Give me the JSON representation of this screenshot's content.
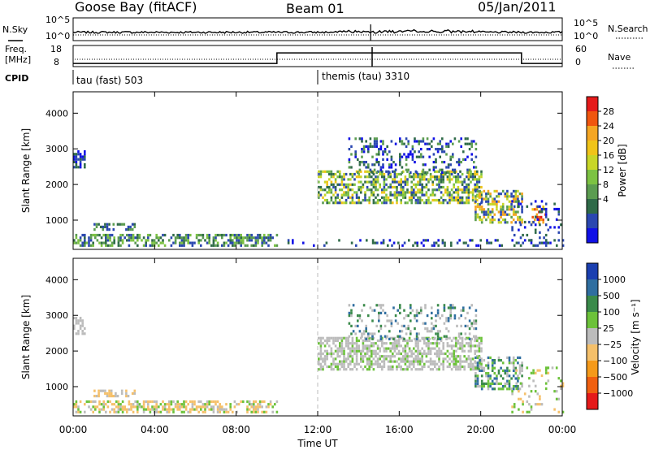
{
  "header": {
    "site": "Goose Bay (fitACF)",
    "beam": "Beam 01",
    "date": "05/Jan/2011"
  },
  "panels": {
    "nsky_label": "N.Sky",
    "nsky_ticks": [
      "10^5",
      "10^0"
    ],
    "nsearch_label": "N.Search",
    "nsearch_ticks": [
      "10^5",
      "10^0"
    ],
    "freq_label_1": "Freq.",
    "freq_label_2": "[MHz]",
    "freq_ticks": [
      "18",
      "8"
    ],
    "nave_label": "Nave",
    "nave_ticks": [
      "60",
      "0"
    ],
    "cpid_label": "CPID",
    "cpid_segments": [
      "tau (fast) 503",
      "themis (tau) 3310"
    ]
  },
  "chart_data": [
    {
      "type": "heatmap",
      "name": "power",
      "xlabel": "Time UT",
      "ylabel": "Slant Range [km]",
      "x_ticks": [
        "00:00",
        "04:00",
        "08:00",
        "12:00",
        "16:00",
        "20:00",
        "00:00"
      ],
      "y_ticks": [
        1000,
        2000,
        3000,
        4000
      ],
      "xlim": [
        0,
        24
      ],
      "ylim": [
        180,
        4600
      ],
      "colorbar": {
        "label": "Power [dB]",
        "ticks": [
          "28",
          "24",
          "20",
          "16",
          "12",
          "8",
          "4"
        ],
        "colors": [
          "#e51a1a",
          "#f0560f",
          "#f5a623",
          "#f0c419",
          "#c8d628",
          "#7cc242",
          "#5b9c50",
          "#2f6a48",
          "#2a47b0",
          "#1010e6"
        ]
      },
      "regions": [
        {
          "t0": 0.0,
          "t1": 10.0,
          "r0": 250,
          "r1": 550,
          "density": 0.55,
          "levels": [
            1,
            2,
            3,
            4
          ]
        },
        {
          "t0": 1.0,
          "t1": 3.0,
          "r0": 700,
          "r1": 900,
          "density": 0.5,
          "levels": [
            1,
            2,
            3
          ]
        },
        {
          "t0": 0.0,
          "t1": 0.6,
          "r0": 2450,
          "r1": 2900,
          "density": 0.6,
          "levels": [
            0,
            1,
            2
          ]
        },
        {
          "t0": 12.0,
          "t1": 20.0,
          "r0": 1450,
          "r1": 2350,
          "density": 0.6,
          "levels": [
            1,
            2,
            3,
            4,
            5,
            6
          ]
        },
        {
          "t0": 13.5,
          "t1": 19.8,
          "r0": 2300,
          "r1": 3300,
          "density": 0.25,
          "levels": [
            0,
            1,
            2,
            3
          ]
        },
        {
          "t0": 19.7,
          "t1": 22.0,
          "r0": 900,
          "r1": 1800,
          "density": 0.55,
          "levels": [
            1,
            3,
            5,
            7
          ]
        },
        {
          "t0": 22.5,
          "t1": 23.2,
          "r0": 900,
          "r1": 1400,
          "density": 0.55,
          "levels": [
            6,
            7,
            8,
            9
          ]
        },
        {
          "t0": 21.5,
          "t1": 24.0,
          "r0": 250,
          "r1": 1500,
          "density": 0.15,
          "levels": [
            0,
            1,
            2
          ]
        },
        {
          "t0": 10.0,
          "t1": 24.0,
          "r0": 250,
          "r1": 450,
          "density": 0.2,
          "levels": [
            0,
            1,
            2
          ]
        }
      ]
    },
    {
      "type": "heatmap",
      "name": "velocity",
      "xlabel": "Time UT",
      "ylabel": "Slant Range [km]",
      "x_ticks": [
        "00:00",
        "04:00",
        "08:00",
        "12:00",
        "16:00",
        "20:00",
        "00:00"
      ],
      "y_ticks": [
        1000,
        2000,
        3000,
        4000
      ],
      "xlim": [
        0,
        24
      ],
      "ylim": [
        180,
        4600
      ],
      "colorbar": {
        "label": "Velocity [m s⁻¹]",
        "ticks": [
          "1000",
          "500",
          "100",
          "25",
          "−25",
          "−100",
          "−500",
          "−1000"
        ],
        "colors": [
          "#1a3fb0",
          "#2f6ea0",
          "#3a8a4a",
          "#6cc23a",
          "#bcbcbc",
          "#f5c06a",
          "#f59a1a",
          "#f06010",
          "#e51a1a"
        ]
      },
      "regions": [
        {
          "t0": 0.0,
          "t1": 10.0,
          "r0": 250,
          "r1": 550,
          "density": 0.55,
          "levels": [
            3,
            4,
            3,
            5
          ]
        },
        {
          "t0": 1.0,
          "t1": 3.0,
          "r0": 700,
          "r1": 900,
          "density": 0.5,
          "levels": [
            3,
            4
          ]
        },
        {
          "t0": 0.0,
          "t1": 0.6,
          "r0": 2450,
          "r1": 2900,
          "density": 0.5,
          "levels": [
            4
          ]
        },
        {
          "t0": 12.0,
          "t1": 20.0,
          "r0": 1450,
          "r1": 2350,
          "density": 0.6,
          "levels": [
            4,
            4,
            4,
            5
          ]
        },
        {
          "t0": 13.5,
          "t1": 19.8,
          "r0": 2300,
          "r1": 3300,
          "density": 0.25,
          "levels": [
            4,
            4,
            6,
            7
          ]
        },
        {
          "t0": 19.7,
          "t1": 22.0,
          "r0": 900,
          "r1": 1800,
          "density": 0.5,
          "levels": [
            4,
            5,
            6,
            7
          ]
        },
        {
          "t0": 21.5,
          "t1": 24.0,
          "r0": 250,
          "r1": 1500,
          "density": 0.15,
          "levels": [
            3,
            4,
            5
          ]
        }
      ]
    }
  ],
  "series": {
    "nsky": "flat near 10^0 with small noise, spike at ~14:30",
    "freq_steps_utc": [
      0,
      10,
      22
    ],
    "freq_values_mhz": [
      9.5,
      14.5,
      9.5
    ],
    "cpid_change_utc": 12.0
  }
}
